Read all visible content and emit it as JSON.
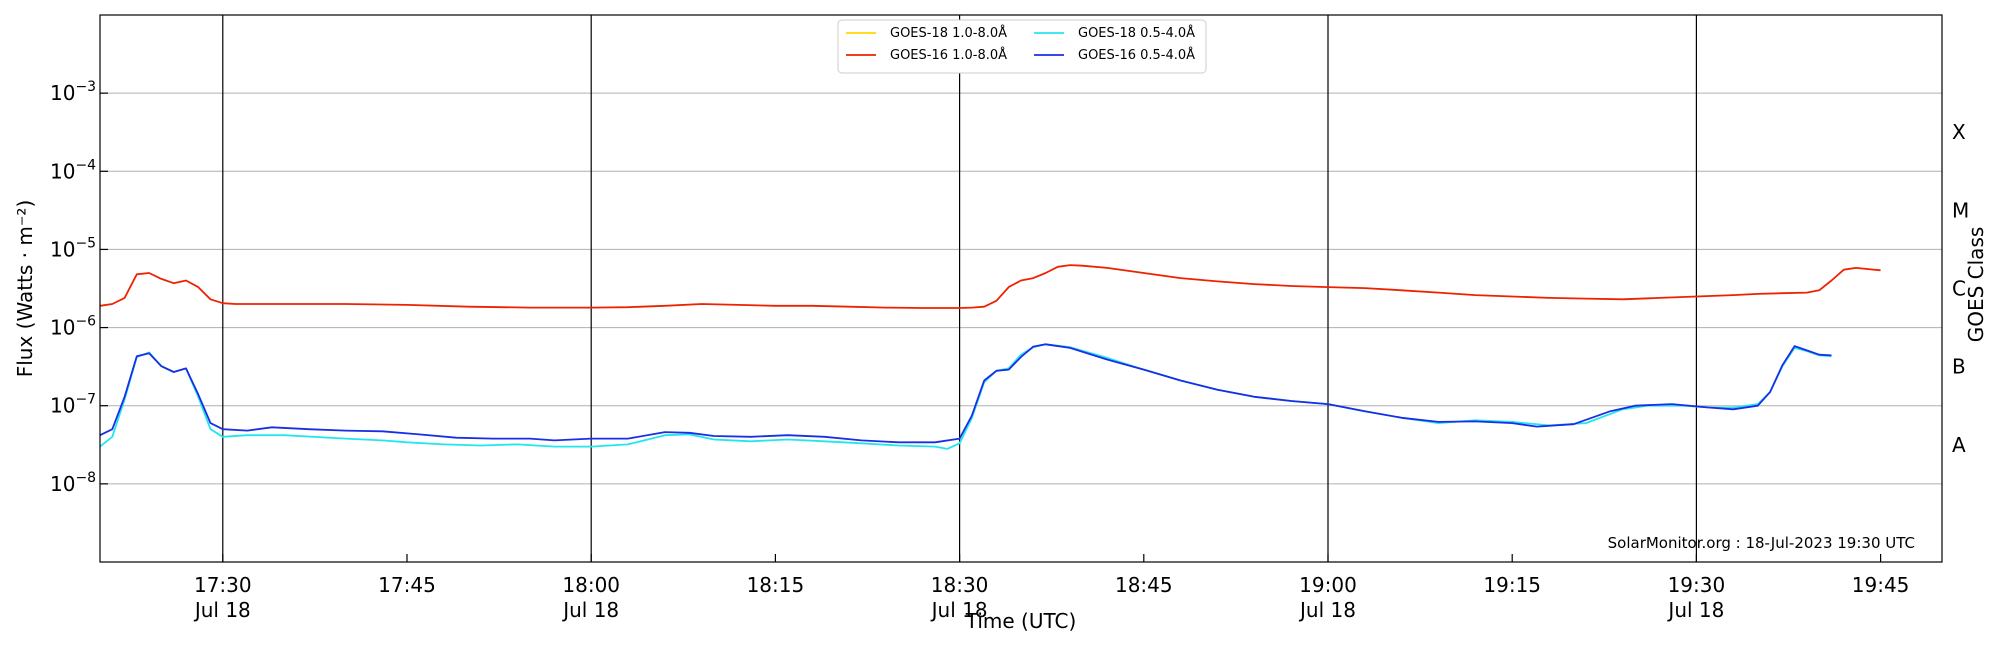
{
  "chart_data": {
    "type": "line",
    "xlabel": "Time (UTC)",
    "ylabel": "Flux (Watts · m⁻²)",
    "y2label": "GOES Class",
    "yscale": "log",
    "xlim": [
      "17:20",
      "19:50"
    ],
    "ylim": [
      1e-09,
      0.01
    ],
    "x_ticks": [
      {
        "time": "17:30",
        "label": "17:30",
        "sublabel": "Jul 18"
      },
      {
        "time": "17:45",
        "label": "17:45",
        "sublabel": ""
      },
      {
        "time": "18:00",
        "label": "18:00",
        "sublabel": "Jul 18"
      },
      {
        "time": "18:15",
        "label": "18:15",
        "sublabel": ""
      },
      {
        "time": "18:30",
        "label": "18:30",
        "sublabel": "Jul 18"
      },
      {
        "time": "18:45",
        "label": "18:45",
        "sublabel": ""
      },
      {
        "time": "19:00",
        "label": "19:00",
        "sublabel": "Jul 18"
      },
      {
        "time": "19:15",
        "label": "19:15",
        "sublabel": ""
      },
      {
        "time": "19:30",
        "label": "19:30",
        "sublabel": "Jul 18"
      },
      {
        "time": "19:45",
        "label": "19:45",
        "sublabel": ""
      }
    ],
    "vertical_lines": [
      "17:30",
      "18:00",
      "18:30",
      "19:00",
      "19:30"
    ],
    "y_ticks": [
      {
        "value": 1e-08,
        "exp": "−8"
      },
      {
        "value": 1e-07,
        "exp": "−7"
      },
      {
        "value": 1e-06,
        "exp": "−6"
      },
      {
        "value": 1e-05,
        "exp": "−5"
      },
      {
        "value": 0.0001,
        "exp": "−4"
      },
      {
        "value": 0.001,
        "exp": "−3"
      }
    ],
    "goes_classes": [
      {
        "label": "A",
        "value": 3.16e-08
      },
      {
        "label": "B",
        "value": 3.16e-07
      },
      {
        "label": "C",
        "value": 3.16e-06
      },
      {
        "label": "M",
        "value": 3.16e-05
      },
      {
        "label": "X",
        "value": 0.000316
      }
    ],
    "grid": true,
    "legend_position": "top-center",
    "footer": "SolarMonitor.org : 18-Jul-2023 19:30 UTC",
    "series": [
      {
        "name": "GOES-18 1.0-8.0Å",
        "color": "#ffd700",
        "points": []
      },
      {
        "name": "GOES-16 1.0-8.0Å",
        "color": "#ee2200",
        "points": [
          [
            "17:20",
            1.9e-06
          ],
          [
            "17:21",
            2e-06
          ],
          [
            "17:22",
            2.4e-06
          ],
          [
            "17:23",
            4.8e-06
          ],
          [
            "17:24",
            5e-06
          ],
          [
            "17:25",
            4.2e-06
          ],
          [
            "17:26",
            3.7e-06
          ],
          [
            "17:27",
            4e-06
          ],
          [
            "17:28",
            3.3e-06
          ],
          [
            "17:29",
            2.3e-06
          ],
          [
            "17:30",
            2.05e-06
          ],
          [
            "17:31",
            2e-06
          ],
          [
            "17:33",
            2e-06
          ],
          [
            "17:36",
            2e-06
          ],
          [
            "17:40",
            2e-06
          ],
          [
            "17:45",
            1.95e-06
          ],
          [
            "17:50",
            1.85e-06
          ],
          [
            "17:55",
            1.8e-06
          ],
          [
            "18:00",
            1.8e-06
          ],
          [
            "18:03",
            1.82e-06
          ],
          [
            "18:06",
            1.9e-06
          ],
          [
            "18:09",
            2e-06
          ],
          [
            "18:12",
            1.95e-06
          ],
          [
            "18:15",
            1.9e-06
          ],
          [
            "18:18",
            1.9e-06
          ],
          [
            "18:21",
            1.85e-06
          ],
          [
            "18:24",
            1.8e-06
          ],
          [
            "18:27",
            1.78e-06
          ],
          [
            "18:30",
            1.78e-06
          ],
          [
            "18:31",
            1.8e-06
          ],
          [
            "18:32",
            1.85e-06
          ],
          [
            "18:33",
            2.2e-06
          ],
          [
            "18:34",
            3.3e-06
          ],
          [
            "18:35",
            4e-06
          ],
          [
            "18:36",
            4.3e-06
          ],
          [
            "18:37",
            5e-06
          ],
          [
            "18:38",
            6e-06
          ],
          [
            "18:39",
            6.3e-06
          ],
          [
            "18:40",
            6.2e-06
          ],
          [
            "18:42",
            5.8e-06
          ],
          [
            "18:45",
            5e-06
          ],
          [
            "18:48",
            4.3e-06
          ],
          [
            "18:51",
            3.9e-06
          ],
          [
            "18:54",
            3.6e-06
          ],
          [
            "18:57",
            3.4e-06
          ],
          [
            "19:00",
            3.3e-06
          ],
          [
            "19:03",
            3.2e-06
          ],
          [
            "19:06",
            3e-06
          ],
          [
            "19:09",
            2.8e-06
          ],
          [
            "19:12",
            2.6e-06
          ],
          [
            "19:15",
            2.5e-06
          ],
          [
            "19:18",
            2.4e-06
          ],
          [
            "19:21",
            2.35e-06
          ],
          [
            "19:24",
            2.3e-06
          ],
          [
            "19:27",
            2.4e-06
          ],
          [
            "19:30",
            2.5e-06
          ],
          [
            "19:33",
            2.6e-06
          ],
          [
            "19:35",
            2.7e-06
          ],
          [
            "19:37",
            2.75e-06
          ],
          [
            "19:39",
            2.8e-06
          ],
          [
            "19:40",
            3e-06
          ],
          [
            "19:41",
            4e-06
          ],
          [
            "19:42",
            5.5e-06
          ],
          [
            "19:43",
            5.8e-06
          ],
          [
            "19:44",
            5.6e-06
          ],
          [
            "19:45",
            5.4e-06
          ]
        ]
      },
      {
        "name": "GOES-18 0.5-4.0Å",
        "color": "#22e6ee",
        "points": [
          [
            "17:20",
            3e-08
          ],
          [
            "17:21",
            4e-08
          ],
          [
            "17:22",
            1.2e-07
          ],
          [
            "17:23",
            4.2e-07
          ],
          [
            "17:24",
            4.8e-07
          ],
          [
            "17:25",
            3.2e-07
          ],
          [
            "17:26",
            2.7e-07
          ],
          [
            "17:27",
            3e-07
          ],
          [
            "17:28",
            1.3e-07
          ],
          [
            "17:29",
            5e-08
          ],
          [
            "17:30",
            4e-08
          ],
          [
            "17:32",
            4.2e-08
          ],
          [
            "17:35",
            4.2e-08
          ],
          [
            "17:40",
            3.8e-08
          ],
          [
            "17:43",
            3.6e-08
          ],
          [
            "17:45",
            3.4e-08
          ],
          [
            "17:48",
            3.2e-08
          ],
          [
            "17:51",
            3.1e-08
          ],
          [
            "17:54",
            3.2e-08
          ],
          [
            "17:57",
            3e-08
          ],
          [
            "18:00",
            3e-08
          ],
          [
            "18:03",
            3.2e-08
          ],
          [
            "18:06",
            4.2e-08
          ],
          [
            "18:08",
            4.3e-08
          ],
          [
            "18:10",
            3.7e-08
          ],
          [
            "18:13",
            3.5e-08
          ],
          [
            "18:16",
            3.7e-08
          ],
          [
            "18:19",
            3.5e-08
          ],
          [
            "18:22",
            3.3e-08
          ],
          [
            "18:25",
            3.1e-08
          ],
          [
            "18:28",
            3e-08
          ],
          [
            "18:29",
            2.8e-08
          ],
          [
            "18:30",
            3.3e-08
          ],
          [
            "18:31",
            7e-08
          ],
          [
            "18:32",
            2e-07
          ],
          [
            "18:33",
            2.8e-07
          ],
          [
            "18:34",
            3e-07
          ],
          [
            "18:35",
            4.5e-07
          ],
          [
            "18:36",
            5.6e-07
          ],
          [
            "18:37",
            6.1e-07
          ],
          [
            "18:39",
            5.6e-07
          ],
          [
            "18:42",
            4.1e-07
          ],
          [
            "18:45",
            2.9e-07
          ],
          [
            "18:48",
            2.1e-07
          ],
          [
            "18:51",
            1.6e-07
          ],
          [
            "18:54",
            1.3e-07
          ],
          [
            "18:57",
            1.15e-07
          ],
          [
            "19:00",
            1.05e-07
          ],
          [
            "19:03",
            8.5e-08
          ],
          [
            "19:06",
            7e-08
          ],
          [
            "19:09",
            6e-08
          ],
          [
            "19:12",
            6.5e-08
          ],
          [
            "19:15",
            6.2e-08
          ],
          [
            "19:18",
            5.6e-08
          ],
          [
            "19:21",
            6e-08
          ],
          [
            "19:24",
            9e-08
          ],
          [
            "19:26",
            1e-07
          ],
          [
            "19:29",
            1e-07
          ],
          [
            "19:31",
            9.5e-08
          ],
          [
            "19:33",
            9.5e-08
          ],
          [
            "19:35",
            1.05e-07
          ],
          [
            "19:36",
            1.5e-07
          ],
          [
            "19:37",
            3.2e-07
          ],
          [
            "19:38",
            5.5e-07
          ],
          [
            "19:39",
            5e-07
          ],
          [
            "19:40",
            4.4e-07
          ],
          [
            "19:41",
            4.3e-07
          ]
        ]
      },
      {
        "name": "GOES-16 0.5-4.0Å",
        "color": "#1a2ee6",
        "points": [
          [
            "17:20",
            4.2e-08
          ],
          [
            "17:21",
            5e-08
          ],
          [
            "17:22",
            1.3e-07
          ],
          [
            "17:23",
            4.3e-07
          ],
          [
            "17:24",
            4.7e-07
          ],
          [
            "17:25",
            3.2e-07
          ],
          [
            "17:26",
            2.7e-07
          ],
          [
            "17:27",
            3e-07
          ],
          [
            "17:28",
            1.4e-07
          ],
          [
            "17:29",
            6e-08
          ],
          [
            "17:30",
            5e-08
          ],
          [
            "17:32",
            4.8e-08
          ],
          [
            "17:34",
            5.3e-08
          ],
          [
            "17:37",
            5e-08
          ],
          [
            "17:40",
            4.8e-08
          ],
          [
            "17:43",
            4.7e-08
          ],
          [
            "17:46",
            4.3e-08
          ],
          [
            "17:49",
            3.9e-08
          ],
          [
            "17:52",
            3.8e-08
          ],
          [
            "17:55",
            3.8e-08
          ],
          [
            "17:57",
            3.6e-08
          ],
          [
            "18:00",
            3.8e-08
          ],
          [
            "18:03",
            3.8e-08
          ],
          [
            "18:06",
            4.6e-08
          ],
          [
            "18:08",
            4.5e-08
          ],
          [
            "18:10",
            4.1e-08
          ],
          [
            "18:13",
            4e-08
          ],
          [
            "18:16",
            4.2e-08
          ],
          [
            "18:19",
            4e-08
          ],
          [
            "18:22",
            3.6e-08
          ],
          [
            "18:25",
            3.4e-08
          ],
          [
            "18:28",
            3.4e-08
          ],
          [
            "18:30",
            3.8e-08
          ],
          [
            "18:31",
            7.5e-08
          ],
          [
            "18:32",
            2.1e-07
          ],
          [
            "18:33",
            2.8e-07
          ],
          [
            "18:34",
            2.9e-07
          ],
          [
            "18:35",
            4.2e-07
          ],
          [
            "18:36",
            5.7e-07
          ],
          [
            "18:37",
            6.1e-07
          ],
          [
            "18:39",
            5.5e-07
          ],
          [
            "18:42",
            3.9e-07
          ],
          [
            "18:45",
            2.9e-07
          ],
          [
            "18:48",
            2.1e-07
          ],
          [
            "18:51",
            1.6e-07
          ],
          [
            "18:54",
            1.3e-07
          ],
          [
            "18:57",
            1.15e-07
          ],
          [
            "19:00",
            1.05e-07
          ],
          [
            "19:03",
            8.5e-08
          ],
          [
            "19:06",
            7e-08
          ],
          [
            "19:09",
            6.2e-08
          ],
          [
            "19:12",
            6.3e-08
          ],
          [
            "19:15",
            6e-08
          ],
          [
            "19:17",
            5.4e-08
          ],
          [
            "19:20",
            5.8e-08
          ],
          [
            "19:23",
            8.5e-08
          ],
          [
            "19:25",
            1e-07
          ],
          [
            "19:28",
            1.05e-07
          ],
          [
            "19:31",
            9.5e-08
          ],
          [
            "19:33",
            9e-08
          ],
          [
            "19:35",
            1e-07
          ],
          [
            "19:36",
            1.5e-07
          ],
          [
            "19:37",
            3.3e-07
          ],
          [
            "19:38",
            5.8e-07
          ],
          [
            "19:39",
            5.1e-07
          ],
          [
            "19:40",
            4.5e-07
          ],
          [
            "19:41",
            4.4e-07
          ]
        ]
      }
    ]
  }
}
